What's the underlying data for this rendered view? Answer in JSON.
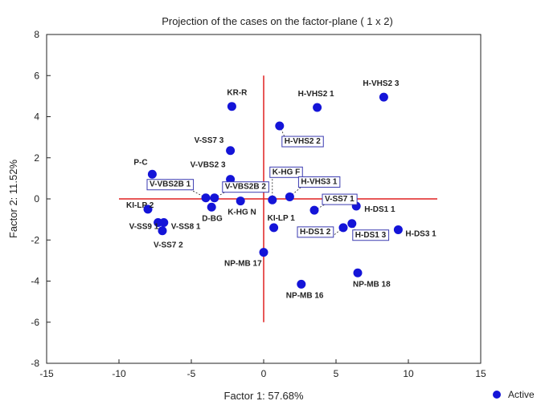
{
  "chart_data": {
    "type": "scatter",
    "title": "Projection of the cases on the factor-plane (  1 x   2)",
    "xlabel": "Factor 1: 57.68%",
    "ylabel": "Factor 2: 11.52%",
    "xlim": [
      -15,
      15
    ],
    "ylim": [
      -8,
      8
    ],
    "xticks": [
      -15,
      -10,
      -5,
      0,
      5,
      10,
      15
    ],
    "yticks": [
      -8,
      -6,
      -4,
      -2,
      0,
      2,
      4,
      6,
      8
    ],
    "reference_lines": {
      "x_line_color": "#e02020",
      "y_line_color": "#e02020",
      "x_range": [
        -10,
        12
      ],
      "y_range": [
        -6,
        6
      ]
    },
    "legend": {
      "position": "bottom-right",
      "entries": [
        {
          "name": "Active",
          "color": "#1414d8"
        }
      ]
    },
    "series": [
      {
        "name": "Active",
        "color": "#1414d8",
        "points": [
          {
            "label": "H-VHS2 3",
            "x": 8.3,
            "y": 4.95,
            "boxed": false
          },
          {
            "label": "H-VHS2 1",
            "x": 3.7,
            "y": 4.45,
            "boxed": false
          },
          {
            "label": "KR-R",
            "x": -2.2,
            "y": 4.5,
            "boxed": false
          },
          {
            "label": "H-VHS2 2",
            "x": 1.1,
            "y": 3.55,
            "boxed": true
          },
          {
            "label": "V-SS7 3",
            "x": -2.3,
            "y": 2.35,
            "boxed": false
          },
          {
            "label": "P-C",
            "x": -7.7,
            "y": 1.2,
            "boxed": false
          },
          {
            "label": "V-VBS2 3",
            "x": -2.3,
            "y": 0.95,
            "boxed": false
          },
          {
            "label": "V-VBS2B 1",
            "x": -4.0,
            "y": 0.05,
            "boxed": true
          },
          {
            "label": "V-VBS2B 2",
            "x": -3.4,
            "y": 0.05,
            "boxed": true
          },
          {
            "label": "D-BG",
            "x": -3.6,
            "y": -0.4,
            "boxed": false
          },
          {
            "label": "K-HG N",
            "x": -1.6,
            "y": -0.1,
            "boxed": false
          },
          {
            "label": "K-HG F",
            "x": 0.6,
            "y": -0.05,
            "boxed": true
          },
          {
            "label": "H-VHS3 1",
            "x": 1.8,
            "y": 0.1,
            "boxed": true
          },
          {
            "label": "V-SS7 1",
            "x": 3.5,
            "y": -0.55,
            "boxed": true
          },
          {
            "label": "H-DS1 1",
            "x": 6.4,
            "y": -0.35,
            "boxed": false
          },
          {
            "label": "KI-LP 2",
            "x": -8.0,
            "y": -0.5,
            "boxed": false
          },
          {
            "label": "V-SS9 1",
            "x": -7.3,
            "y": -1.15,
            "boxed": false
          },
          {
            "label": "V-SS8 1",
            "x": -6.9,
            "y": -1.15,
            "boxed": false
          },
          {
            "label": "V-SS7 2",
            "x": -7.0,
            "y": -1.55,
            "boxed": false
          },
          {
            "label": "KI-LP 1",
            "x": 0.7,
            "y": -1.4,
            "boxed": false
          },
          {
            "label": "H-DS1 2",
            "x": 5.5,
            "y": -1.4,
            "boxed": true
          },
          {
            "label": "H-DS1 3",
            "x": 6.1,
            "y": -1.2,
            "boxed": true
          },
          {
            "label": "H-DS3 1",
            "x": 9.3,
            "y": -1.5,
            "boxed": false
          },
          {
            "label": "NP-MB 17",
            "x": 0.0,
            "y": -2.6,
            "boxed": false
          },
          {
            "label": "NP-MB 18",
            "x": 6.5,
            "y": -3.6,
            "boxed": false
          },
          {
            "label": "NP-MB 16",
            "x": 2.6,
            "y": -4.15,
            "boxed": false
          }
        ]
      }
    ]
  }
}
